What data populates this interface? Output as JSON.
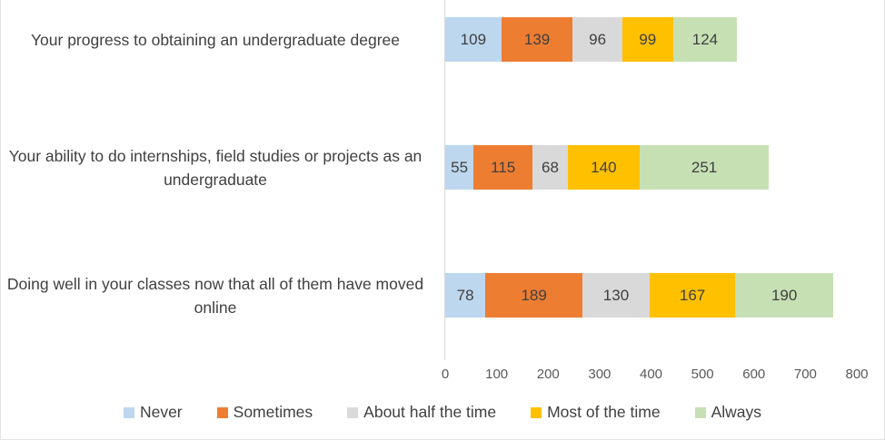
{
  "chart_data": {
    "type": "bar",
    "orientation": "horizontal",
    "stacked": true,
    "title": "",
    "xlabel": "",
    "ylabel": "",
    "categories": [
      "Your progress to obtaining an undergraduate degree",
      "Your ability to do internships, field studies or projects as an undergraduate",
      "Doing well in your classes now that all of them have moved online"
    ],
    "series": [
      {
        "name": "Never",
        "color": "#BDD7EE",
        "values": [
          109,
          55,
          78
        ]
      },
      {
        "name": "Sometimes",
        "color": "#ED7D31",
        "values": [
          139,
          115,
          189
        ]
      },
      {
        "name": "About half the time",
        "color": "#D9D9D9",
        "values": [
          96,
          68,
          130
        ]
      },
      {
        "name": "Most of the time",
        "color": "#FFC000",
        "values": [
          99,
          140,
          167
        ]
      },
      {
        "name": "Always",
        "color": "#C6E0B4",
        "values": [
          124,
          251,
          190
        ]
      }
    ],
    "xlim": [
      0,
      800
    ],
    "x_ticks": [
      0,
      100,
      200,
      300,
      400,
      500,
      600,
      700,
      800
    ],
    "grid": false,
    "legend_position": "bottom",
    "data_labels": true,
    "axis_color": "#d9d9d9",
    "label_text_color": "#404040",
    "tick_text_color": "#595959"
  }
}
